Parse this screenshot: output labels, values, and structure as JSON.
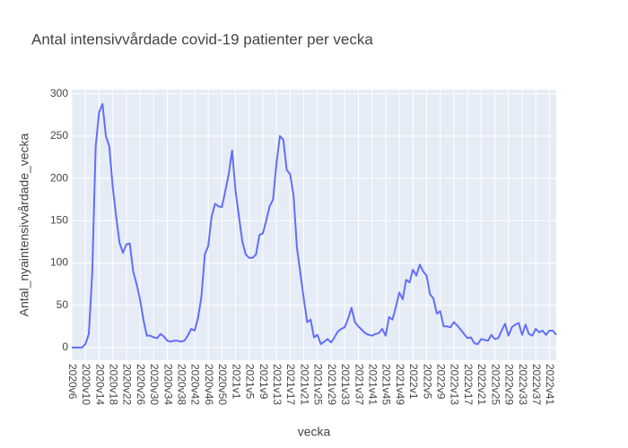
{
  "chart_data": {
    "type": "line",
    "title": "Antal intensivvårdade covid-19 patienter per vecka",
    "x_label": "vecka",
    "y_label": "Antal_nyaintensivvårdade_vecka",
    "categories": [
      "2020v6",
      null,
      null,
      null,
      "2020v10",
      null,
      null,
      null,
      "2020v14",
      null,
      null,
      null,
      "2020v18",
      null,
      null,
      null,
      "2020v22",
      null,
      null,
      null,
      "2020v26",
      null,
      null,
      null,
      "2020v30",
      null,
      null,
      null,
      "2020v34",
      null,
      null,
      null,
      "2020v38",
      null,
      null,
      null,
      "2020v42",
      null,
      null,
      null,
      "2020v46",
      null,
      null,
      null,
      "2020v50",
      null,
      null,
      null,
      "2021v1",
      null,
      null,
      null,
      "2021v5",
      null,
      null,
      null,
      "2021v9",
      null,
      null,
      null,
      "2021v13",
      null,
      null,
      null,
      "2021v17",
      null,
      null,
      null,
      "2021v21",
      null,
      null,
      null,
      "2021v25",
      null,
      null,
      null,
      "2021v29",
      null,
      null,
      null,
      "2021v33",
      null,
      null,
      null,
      "2021v37",
      null,
      null,
      null,
      "2021v41",
      null,
      null,
      null,
      "2021v45",
      null,
      null,
      null,
      "2021v49",
      null,
      null,
      null,
      "2022v1",
      null,
      null,
      null,
      "2022v5",
      null,
      null,
      null,
      "2022v9",
      null,
      null,
      null,
      "2022v13",
      null,
      null,
      null,
      "2022v17",
      null,
      null,
      null,
      "2022v21",
      null,
      null,
      null,
      "2022v25",
      null,
      null,
      null,
      "2022v29",
      null,
      null,
      null,
      "2022v33",
      null,
      null,
      null,
      "2022v37",
      null,
      null,
      null,
      "2022v41",
      null,
      null
    ],
    "series": [
      {
        "name": "Antal_nyaintensivvårdade_vecka",
        "color": "#636efa",
        "values": [
          0,
          0,
          0,
          0,
          4,
          16,
          88,
          237,
          278,
          288,
          250,
          238,
          190,
          155,
          124,
          112,
          122,
          123,
          90,
          75,
          57,
          33,
          14,
          14,
          12,
          11,
          16,
          13,
          8,
          7,
          8,
          8,
          7,
          8,
          14,
          22,
          20,
          35,
          60,
          110,
          120,
          155,
          170,
          167,
          166,
          185,
          205,
          233,
          185,
          155,
          125,
          110,
          106,
          106,
          110,
          133,
          135,
          150,
          167,
          175,
          218,
          250,
          246,
          210,
          205,
          180,
          118,
          88,
          58,
          30,
          33,
          12,
          15,
          4,
          7,
          10,
          6,
          12,
          19,
          22,
          24,
          34,
          47,
          30,
          25,
          21,
          17,
          15,
          14,
          16,
          17,
          22,
          14,
          36,
          33,
          48,
          65,
          57,
          80,
          77,
          92,
          85,
          98,
          90,
          85,
          63,
          58,
          40,
          43,
          25,
          25,
          24,
          30,
          26,
          21,
          16,
          11,
          12,
          5,
          4,
          10,
          9,
          8,
          15,
          10,
          11,
          20,
          28,
          14,
          24,
          27,
          29,
          15,
          27,
          16,
          14,
          22,
          18,
          20,
          15,
          20,
          20,
          15
        ]
      }
    ],
    "ylim": [
      -15,
      305
    ],
    "yticks": [
      0,
      50,
      100,
      150,
      200,
      250,
      300
    ],
    "grid": true
  }
}
